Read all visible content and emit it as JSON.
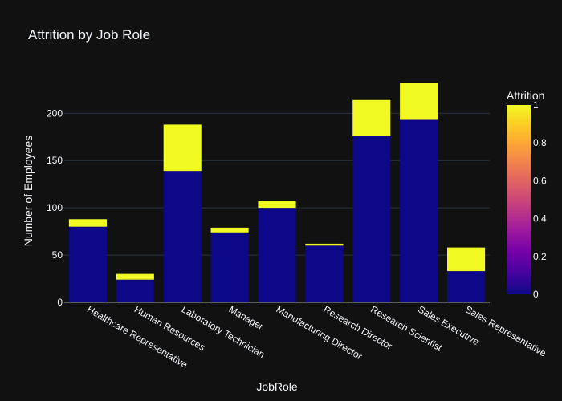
{
  "chart_data": {
    "type": "bar",
    "title": "Attrition by Job Role",
    "xlabel": "JobRole",
    "ylabel": "Number of Employees",
    "categories": [
      "Healthcare Representative",
      "Human Resources",
      "Laboratory Technician",
      "Manager",
      "Manufacturing Director",
      "Research Director",
      "Research Scientist",
      "Sales Executive",
      "Sales Representative"
    ],
    "series": [
      {
        "attrition": 0,
        "color": "#0d0887",
        "values": [
          80,
          24,
          139,
          74,
          100,
          60,
          176,
          193,
          33
        ]
      },
      {
        "attrition": 1,
        "color": "#f0f921",
        "values": [
          8,
          6,
          49,
          5,
          7,
          2,
          38,
          39,
          25
        ]
      }
    ],
    "ylim": [
      0,
      235
    ],
    "yticks": [
      0,
      50,
      100,
      150,
      200
    ],
    "colorbar": {
      "title": "Attrition",
      "ticks": [
        "0",
        "0.2",
        "0.4",
        "0.6",
        "0.8",
        "1"
      ],
      "colors": [
        "#0d0887",
        "#46039f",
        "#7201a8",
        "#9c179e",
        "#bd3786",
        "#d8576b",
        "#ed7953",
        "#fb9f3a",
        "#fdca26",
        "#f0f921"
      ]
    },
    "grid": true,
    "legend": "right"
  }
}
